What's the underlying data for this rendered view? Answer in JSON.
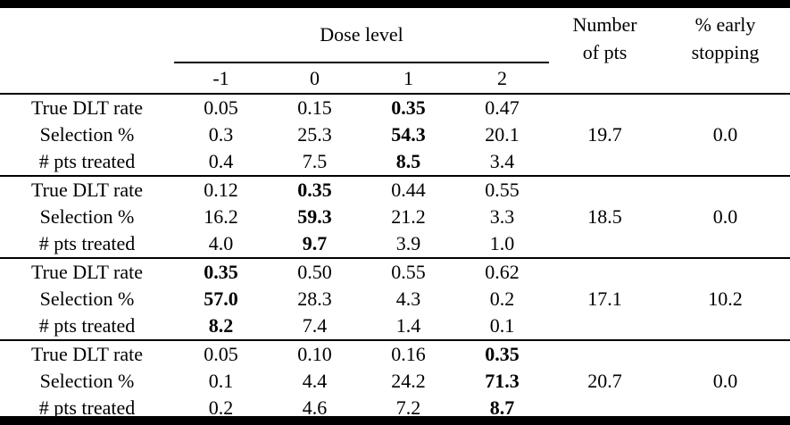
{
  "header": {
    "dose_level_label": "Dose level",
    "dose_columns": [
      "-1",
      "0",
      "1",
      "2"
    ],
    "number_of_pts_label": "Number of pts",
    "early_stopping_label": "% early stopping"
  },
  "colors": {
    "text": "#000000",
    "background": "#ffffff",
    "rule": "#000000"
  },
  "scenarios": [
    {
      "rows": [
        {
          "label": "True DLT rate",
          "values": [
            "0.05",
            "0.15",
            "0.35",
            "0.47"
          ]
        },
        {
          "label": "Selection %",
          "values": [
            "0.3",
            "25.3",
            "54.3",
            "20.1"
          ]
        },
        {
          "label": "# pts treated",
          "values": [
            "0.4",
            "7.5",
            "8.5",
            "3.4"
          ]
        }
      ],
      "bold_dose_index": 2,
      "number_of_pts": "19.7",
      "early_stopping_pct": "0.0"
    },
    {
      "rows": [
        {
          "label": "True DLT rate",
          "values": [
            "0.12",
            "0.35",
            "0.44",
            "0.55"
          ]
        },
        {
          "label": "Selection %",
          "values": [
            "16.2",
            "59.3",
            "21.2",
            "3.3"
          ]
        },
        {
          "label": "# pts treated",
          "values": [
            "4.0",
            "9.7",
            "3.9",
            "1.0"
          ]
        }
      ],
      "bold_dose_index": 1,
      "number_of_pts": "18.5",
      "early_stopping_pct": "0.0"
    },
    {
      "rows": [
        {
          "label": "True DLT rate",
          "values": [
            "0.35",
            "0.50",
            "0.55",
            "0.62"
          ]
        },
        {
          "label": "Selection %",
          "values": [
            "57.0",
            "28.3",
            "4.3",
            "0.2"
          ]
        },
        {
          "label": "# pts treated",
          "values": [
            "8.2",
            "7.4",
            "1.4",
            "0.1"
          ]
        }
      ],
      "bold_dose_index": 0,
      "number_of_pts": "17.1",
      "early_stopping_pct": "10.2"
    },
    {
      "rows": [
        {
          "label": "True DLT rate",
          "values": [
            "0.05",
            "0.10",
            "0.16",
            "0.35"
          ]
        },
        {
          "label": "Selection %",
          "values": [
            "0.1",
            "4.4",
            "24.2",
            "71.3"
          ]
        },
        {
          "label": "# pts treated",
          "values": [
            "0.2",
            "4.6",
            "7.2",
            "8.7"
          ]
        }
      ],
      "bold_dose_index": 3,
      "number_of_pts": "20.7",
      "early_stopping_pct": "0.0"
    }
  ]
}
